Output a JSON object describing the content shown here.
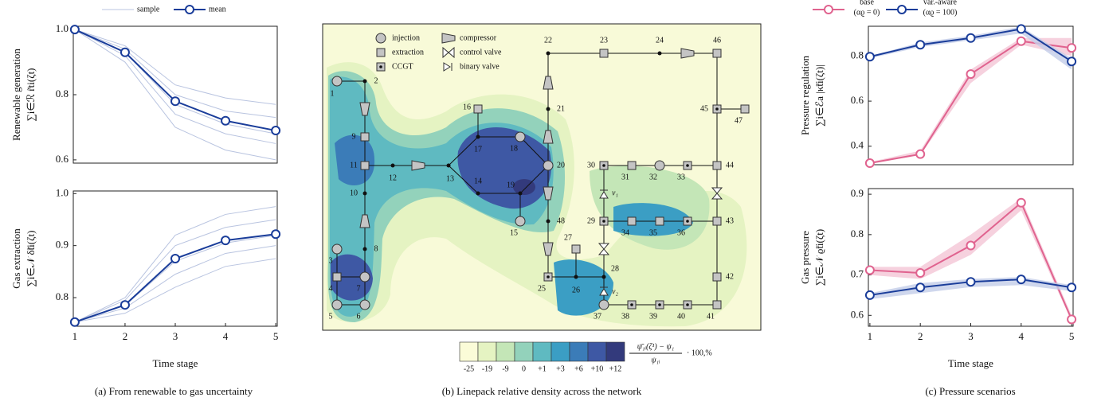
{
  "chart_data": [
    {
      "type": "line",
      "x": [
        1,
        2,
        3,
        4,
        5
      ],
      "xlim": [
        0.97,
        5.03
      ],
      "ylim": [
        0.59,
        1.01
      ],
      "yticks": [
        0.6,
        0.8,
        {
          "value": 1,
          "label": "1.0"
        }
      ],
      "ylabel": [
        "Renewable generation",
        "∑i∈ℛ r̃ti(ζt)"
      ],
      "legend": "top",
      "series": [
        {
          "name": "sample",
          "color": "#b9c4e0",
          "lines": [
            [
              1,
              0.95,
              0.83,
              0.79,
              0.77
            ],
            [
              1,
              0.94,
              0.8,
              0.75,
              0.73
            ],
            [
              1,
              0.93,
              0.77,
              0.71,
              0.68
            ],
            [
              1,
              0.92,
              0.74,
              0.68,
              0.65
            ],
            [
              1,
              0.9,
              0.7,
              0.63,
              0.6
            ]
          ]
        },
        {
          "name": "mean",
          "color": "#1a3d9a",
          "values": [
            1,
            0.93,
            0.78,
            0.72,
            0.69
          ]
        }
      ]
    },
    {
      "type": "line",
      "x": [
        1,
        2,
        3,
        4,
        5
      ],
      "xlim": [
        0.97,
        5.03
      ],
      "ylim": [
        0.745,
        1.005
      ],
      "xticks": [
        1,
        2,
        3,
        4,
        5
      ],
      "yticks": [
        0.8,
        0.9,
        {
          "value": 1,
          "label": "1.0"
        }
      ],
      "xlabel": "Time stage",
      "ylabel": [
        "Gas extraction",
        "∑i∈𝒩 δ̃ti(ζt)"
      ],
      "series": [
        {
          "color": "#b9c4e0",
          "lines": [
            [
              0.753,
              0.8,
              0.92,
              0.96,
              0.975
            ],
            [
              0.753,
              0.795,
              0.9,
              0.935,
              0.95
            ],
            [
              0.753,
              0.785,
              0.87,
              0.905,
              0.92
            ],
            [
              0.753,
              0.78,
              0.845,
              0.885,
              0.9
            ],
            [
              0.753,
              0.77,
              0.82,
              0.86,
              0.875
            ]
          ]
        },
        {
          "color": "#1a3d9a",
          "values": [
            0.753,
            0.786,
            0.875,
            0.91,
            0.922
          ]
        }
      ]
    },
    {
      "type": "line",
      "x": [
        1,
        2,
        3,
        4,
        5
      ],
      "xlim": [
        0.97,
        5.03
      ],
      "ylim": [
        0.318,
        0.932
      ],
      "yticks": [
        0.4,
        0.6,
        0.8
      ],
      "ylabel": [
        "Pressure regulation",
        "∑i∈ℰa |κ̃ti(ζt)|"
      ],
      "legend": "top",
      "series": [
        {
          "name": "base",
          "param": "(αϱ = 0)",
          "color": "#e0638f",
          "band_color": "#f4c6d6",
          "values": [
            0.325,
            0.365,
            0.72,
            0.866,
            0.836
          ],
          "band_low": [
            0.325,
            0.36,
            0.68,
            0.85,
            0.8
          ],
          "band_high": [
            0.33,
            0.38,
            0.74,
            0.88,
            0.88
          ]
        },
        {
          "name": "var.-aware",
          "param": "(αϱ = 100)",
          "color": "#1a3d9a",
          "band_color": "#c3cde8",
          "values": [
            0.797,
            0.85,
            0.88,
            0.92,
            0.776
          ],
          "band_low": [
            0.79,
            0.84,
            0.87,
            0.9,
            0.74
          ],
          "band_high": [
            0.8,
            0.86,
            0.89,
            0.93,
            0.79
          ]
        }
      ]
    },
    {
      "type": "line",
      "x": [
        1,
        2,
        3,
        4,
        5
      ],
      "xlim": [
        0.97,
        5.03
      ],
      "ylim": [
        0.573,
        0.914
      ],
      "xticks": [
        1,
        2,
        3,
        4,
        5
      ],
      "yticks": [
        0.6,
        0.7,
        0.8,
        0.9
      ],
      "xlabel": "Time stage",
      "ylabel": [
        "Gas pressure",
        "∑i∈𝒩 ϱ̃ti(ζt)"
      ],
      "series": [
        {
          "color": "#e0638f",
          "band_color": "#f4c6d6",
          "values": [
            0.712,
            0.705,
            0.773,
            0.879,
            0.59
          ],
          "band_low": [
            0.7,
            0.69,
            0.75,
            0.86,
            0.585
          ],
          "band_high": [
            0.72,
            0.72,
            0.8,
            0.89,
            0.6
          ]
        },
        {
          "color": "#1a3d9a",
          "band_color": "#c3cde8",
          "values": [
            0.65,
            0.669,
            0.683,
            0.689,
            0.669
          ],
          "band_low": [
            0.64,
            0.655,
            0.67,
            0.675,
            0.66
          ],
          "band_high": [
            0.655,
            0.68,
            0.69,
            0.695,
            0.675
          ]
        }
      ]
    }
  ],
  "network": {
    "legend": [
      "injection",
      "extraction",
      "CCGT",
      "compressor",
      "control valve",
      "binary valve"
    ],
    "nodes": [
      {
        "label": "1",
        "kind": "injection"
      },
      {
        "label": "2",
        "kind": "junction"
      },
      {
        "label": "3",
        "kind": "injection"
      },
      {
        "label": "4",
        "kind": "extraction"
      },
      {
        "label": "5",
        "kind": "injection"
      },
      {
        "label": "6",
        "kind": "injection"
      },
      {
        "label": "7",
        "kind": "injection"
      },
      {
        "label": "8",
        "kind": "junction"
      },
      {
        "label": "9",
        "kind": "extraction"
      },
      {
        "label": "10",
        "kind": "junction"
      },
      {
        "label": "11",
        "kind": "extraction"
      },
      {
        "label": "12",
        "kind": "junction"
      },
      {
        "label": "13",
        "kind": "junction"
      },
      {
        "label": "14",
        "kind": "junction"
      },
      {
        "label": "15",
        "kind": "injection"
      },
      {
        "label": "16",
        "kind": "extraction"
      },
      {
        "label": "17",
        "kind": "junction"
      },
      {
        "label": "18",
        "kind": "injection"
      },
      {
        "label": "19",
        "kind": "junction"
      },
      {
        "label": "20",
        "kind": "injection"
      },
      {
        "label": "21",
        "kind": "junction"
      },
      {
        "label": "22",
        "kind": "junction"
      },
      {
        "label": "23",
        "kind": "extraction"
      },
      {
        "label": "24",
        "kind": "junction"
      },
      {
        "label": "25",
        "kind": "ccgt"
      },
      {
        "label": "26",
        "kind": "junction"
      },
      {
        "label": "27",
        "kind": "extraction"
      },
      {
        "label": "28",
        "kind": "junction"
      },
      {
        "label": "29",
        "kind": "ccgt"
      },
      {
        "label": "30",
        "kind": "ccgt"
      },
      {
        "label": "31",
        "kind": "extraction"
      },
      {
        "label": "32",
        "kind": "injection"
      },
      {
        "label": "33",
        "kind": "ccgt"
      },
      {
        "label": "34",
        "kind": "extraction"
      },
      {
        "label": "35",
        "kind": "extraction"
      },
      {
        "label": "36",
        "kind": "ccgt"
      },
      {
        "label": "37",
        "kind": "injection"
      },
      {
        "label": "38",
        "kind": "ccgt"
      },
      {
        "label": "39",
        "kind": "ccgt"
      },
      {
        "label": "40",
        "kind": "ccgt"
      },
      {
        "label": "41",
        "kind": "extraction"
      },
      {
        "label": "42",
        "kind": "extraction"
      },
      {
        "label": "43",
        "kind": "extraction"
      },
      {
        "label": "44",
        "kind": "extraction"
      },
      {
        "label": "45",
        "kind": "ccgt"
      },
      {
        "label": "46",
        "kind": "extraction"
      },
      {
        "label": "47",
        "kind": "extraction"
      },
      {
        "label": "48",
        "kind": "junction"
      }
    ],
    "valve_labels": [
      "v₁",
      "v₂"
    ],
    "colorbar": {
      "colors": [
        "#fbfcd8",
        "#e5f3c2",
        "#c4e6b7",
        "#93d2bb",
        "#5fbac1",
        "#3b9ec4",
        "#3b7cb8",
        "#3e58a4",
        "#333a7c"
      ],
      "ticks": [
        -25,
        -19,
        -9,
        0,
        {
          "value": 1,
          "label": "+1"
        },
        {
          "value": 3,
          "label": "+3"
        },
        {
          "value": 6,
          "label": "+6"
        },
        {
          "value": 10,
          "label": "+10"
        },
        {
          "value": 12,
          "label": "+12"
        }
      ],
      "numerator": "ψ̄₁ᵢ(ζ¹) − ψ₁",
      "denominator": "ψ₁ᵢ",
      "suffix": "· 100,%"
    }
  },
  "captions": [
    "(a) From renewable to gas uncertainty",
    "(b) Linepack relative density across the network",
    "(c) Pressure scenarios"
  ]
}
